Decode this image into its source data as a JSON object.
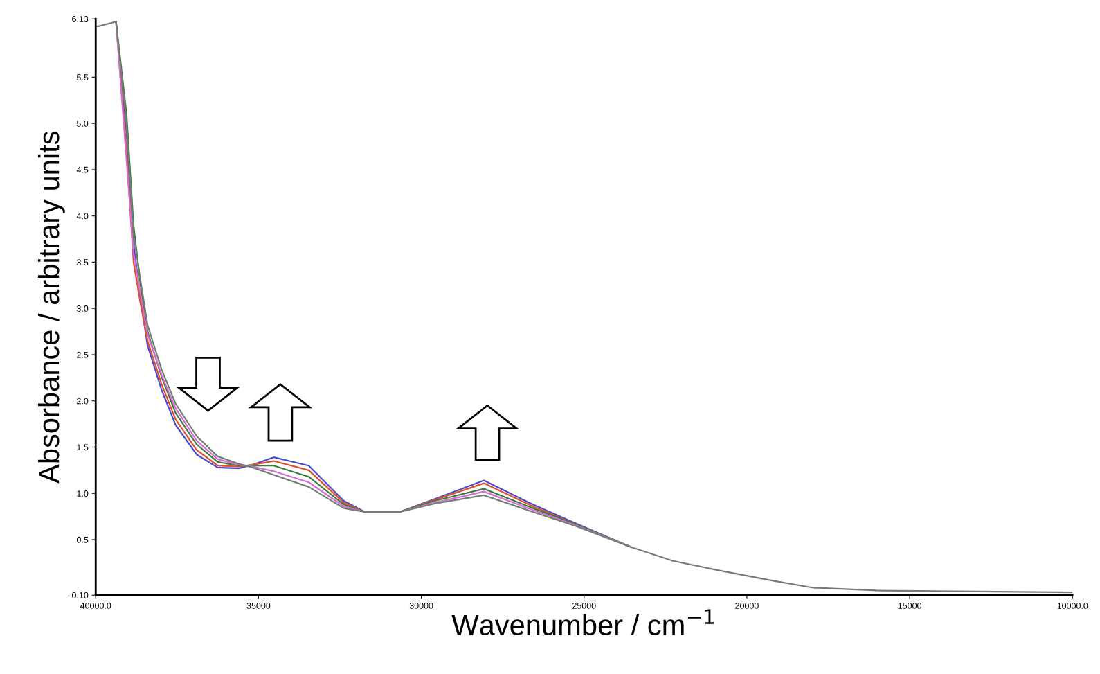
{
  "chart_data": {
    "type": "line",
    "xlabel": "Wavenumber / cm$^{−1}$",
    "ylabel": "Absorbance / arbitrary units",
    "x": [
      40000,
      39914,
      39376,
      39053,
      38838,
      38623,
      38408,
      37977,
      37547,
      36901,
      36256,
      35610,
      35180,
      34534,
      33458,
      32382,
      31736,
      30660,
      29584,
      28078,
      26572,
      25280,
      23559,
      22268,
      20761,
      19255,
      17964,
      16027,
      10000
    ],
    "series": [
      {
        "color": "#4a4ad0",
        "values": [
          null,
          null,
          6.1,
          4.9,
          3.7,
          3.1,
          2.6,
          2.12,
          1.74,
          1.42,
          1.28,
          1.27,
          1.31,
          1.39,
          1.3,
          0.92,
          0.8,
          0.8,
          0.94,
          1.14,
          0.88,
          0.68,
          0.42,
          null,
          null,
          null,
          null,
          null,
          null
        ]
      },
      {
        "color": "#e0502a",
        "values": [
          null,
          null,
          6.1,
          4.7,
          3.5,
          3.05,
          2.65,
          2.18,
          1.8,
          1.47,
          1.3,
          1.29,
          1.31,
          1.35,
          1.25,
          0.9,
          0.8,
          0.8,
          0.93,
          1.11,
          0.86,
          0.67,
          0.42,
          null,
          null,
          null,
          null,
          null,
          null
        ]
      },
      {
        "color": "#3f7a3f",
        "values": [
          null,
          null,
          6.1,
          5.1,
          3.9,
          3.25,
          2.75,
          2.26,
          1.87,
          1.53,
          1.34,
          1.3,
          1.3,
          1.3,
          1.18,
          0.88,
          0.8,
          0.8,
          0.92,
          1.05,
          0.84,
          0.67,
          0.42,
          null,
          null,
          null,
          null,
          null,
          null
        ]
      },
      {
        "color": "#d86ad8",
        "values": [
          null,
          null,
          6.1,
          4.6,
          3.6,
          3.15,
          2.72,
          2.28,
          1.92,
          1.57,
          1.37,
          1.31,
          1.29,
          1.24,
          1.12,
          0.86,
          0.8,
          0.8,
          0.9,
          1.02,
          0.82,
          0.66,
          0.42,
          null,
          null,
          null,
          null,
          null,
          null
        ]
      },
      {
        "color": "#6f7f70",
        "values": [
          6.05,
          6.05,
          6.1,
          5.0,
          3.8,
          3.3,
          2.82,
          2.34,
          1.97,
          1.62,
          1.4,
          1.32,
          1.28,
          1.2,
          1.07,
          0.84,
          0.8,
          0.8,
          0.89,
          0.98,
          0.8,
          0.65,
          0.42,
          0.27,
          0.16,
          0.06,
          -0.02,
          -0.05,
          -0.07
        ]
      }
    ],
    "xlim": [
      40000,
      10000
    ],
    "xticks": [
      {
        "value": 40000,
        "label": "40000.0"
      },
      35000,
      30000,
      25000,
      20000,
      15000,
      {
        "value": 10000,
        "label": "10000.0"
      }
    ],
    "ylim": [
      -0.1,
      6.13
    ],
    "yticks": [
      {
        "value": -0.1,
        "label": "-0.10"
      },
      {
        "value": 0.5,
        "label": "0.5"
      },
      {
        "value": 1.0,
        "label": "1.0"
      },
      {
        "value": 1.5,
        "label": "1.5"
      },
      {
        "value": 2.0,
        "label": "2.0"
      },
      {
        "value": 2.5,
        "label": "2.5"
      },
      {
        "value": 3.0,
        "label": "3.0"
      },
      {
        "value": 3.5,
        "label": "3.5"
      },
      {
        "value": 4.0,
        "label": "4.0"
      },
      {
        "value": 4.5,
        "label": "4.5"
      },
      {
        "value": 5.0,
        "label": "5.0"
      },
      {
        "value": 5.5,
        "label": "5.5"
      },
      {
        "value": 6.13,
        "label": "6.13"
      }
    ],
    "grid": false,
    "legend": false,
    "marker": "none",
    "line_style": "solid"
  }
}
